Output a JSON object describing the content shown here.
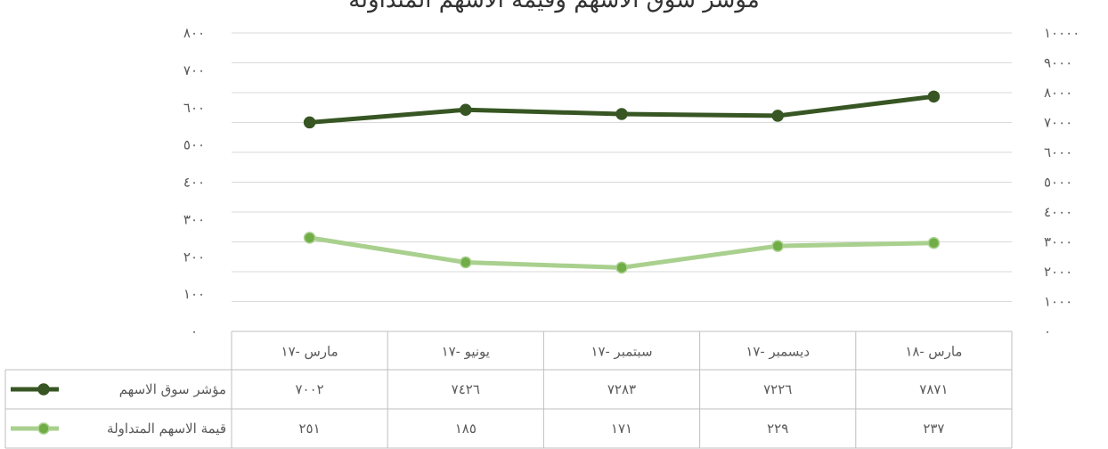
{
  "chart_data": {
    "type": "line",
    "title": "مؤشر سوق الاسهم وقيمة الاسهم المتداولة",
    "categories": [
      "مارس -١٧",
      "يونيو -١٧",
      "سبتمبر -١٧",
      "ديسمبر -١٧",
      "مارس -١٨"
    ],
    "left_axis": {
      "ylim": [
        0,
        800
      ],
      "ticks": [
        "٠",
        "١٠٠",
        "٢٠٠",
        "٣٠٠",
        "٤٠٠",
        "٥٠٠",
        "٦٠٠",
        "٧٠٠",
        "٨٠٠"
      ]
    },
    "right_axis": {
      "ylim": [
        0,
        10000
      ],
      "ticks": [
        "٠",
        "١٠٠٠",
        "٢٠٠٠",
        "٣٠٠٠",
        "٤٠٠٠",
        "٥٠٠٠",
        "٦٠٠٠",
        "٧٠٠٠",
        "٨٠٠٠",
        "٩٠٠٠",
        "١٠٠٠٠"
      ]
    },
    "grid": true,
    "legend": "data-table",
    "series": [
      {
        "name": "مؤشر سوق الاسهم",
        "axis": "right",
        "color": "#375623",
        "values": [
          7002,
          7426,
          7283,
          7226,
          7871
        ],
        "labels": [
          "٧٠٠٢",
          "٧٤٢٦",
          "٧٢٨٣",
          "٧٢٢٦",
          "٧٨٧١"
        ]
      },
      {
        "name": "قيمة الاسهم المتداولة",
        "axis": "left",
        "color": "#A9D08E",
        "marker_color": "#70AD47",
        "values": [
          251,
          185,
          171,
          229,
          237
        ],
        "labels": [
          "٢٥١",
          "١٨٥",
          "١٧١",
          "٢٢٩",
          "٢٣٧"
        ]
      }
    ]
  }
}
